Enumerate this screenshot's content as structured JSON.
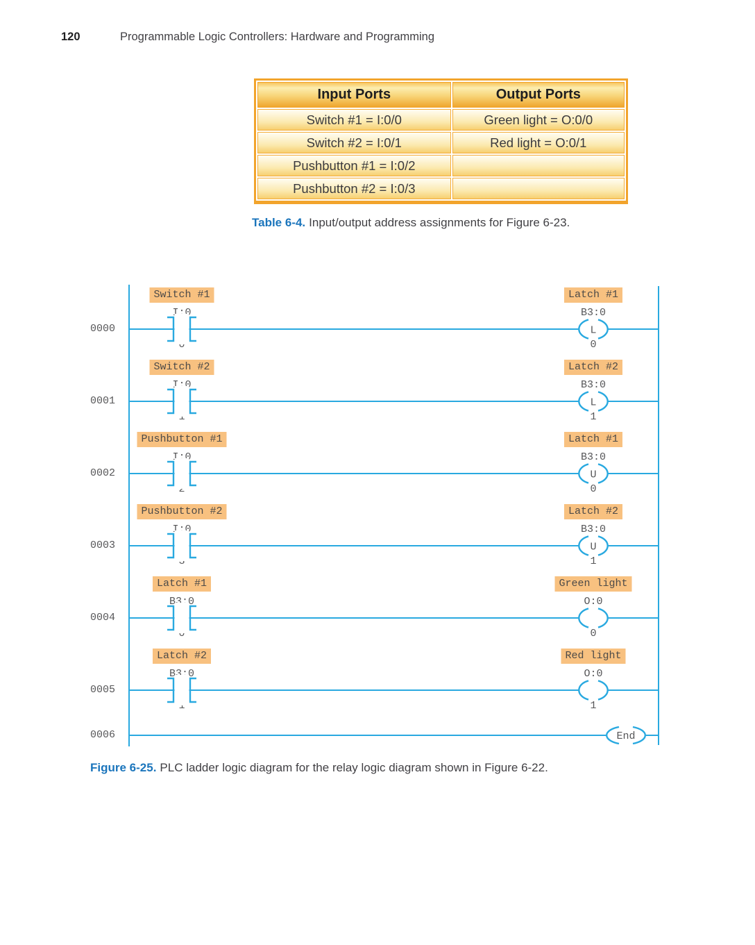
{
  "header": {
    "page_number": "120",
    "title": "Programmable Logic Controllers: Hardware and Programming"
  },
  "table": {
    "columns": [
      "Input Ports",
      "Output Ports"
    ],
    "rows": [
      [
        "Switch #1 = I:0/0",
        "Green light = O:0/0"
      ],
      [
        "Switch #2 = I:0/1",
        "Red light = O:0/1"
      ],
      [
        "Pushbutton #1 = I:0/2",
        ""
      ],
      [
        "Pushbutton #2 = I:0/3",
        ""
      ]
    ],
    "caption_label": "Table 6-4.",
    "caption_text": "Input/output address assignments for Figure 6-23."
  },
  "ladder": {
    "rungs": [
      {
        "number": "0000",
        "input": {
          "label": "Switch #1",
          "address": "I:0",
          "bit": "0"
        },
        "output": {
          "label": "Latch #1",
          "address": "B3:0",
          "bit": "0",
          "coil": "L"
        }
      },
      {
        "number": "0001",
        "input": {
          "label": "Switch #2",
          "address": "I:0",
          "bit": "1"
        },
        "output": {
          "label": "Latch #2",
          "address": "B3:0",
          "bit": "1",
          "coil": "L"
        }
      },
      {
        "number": "0002",
        "input": {
          "label": "Pushbutton #1",
          "address": "I:0",
          "bit": "2"
        },
        "output": {
          "label": "Latch #1",
          "address": "B3:0",
          "bit": "0",
          "coil": "U"
        }
      },
      {
        "number": "0003",
        "input": {
          "label": "Pushbutton #2",
          "address": "I:0",
          "bit": "3"
        },
        "output": {
          "label": "Latch #2",
          "address": "B3:0",
          "bit": "1",
          "coil": "U"
        }
      },
      {
        "number": "0004",
        "input": {
          "label": "Latch #1",
          "address": "B3:0",
          "bit": "0"
        },
        "output": {
          "label": "Green light",
          "address": "O:0",
          "bit": "0",
          "coil": ""
        }
      },
      {
        "number": "0005",
        "input": {
          "label": "Latch #2",
          "address": "B3:0",
          "bit": "1"
        },
        "output": {
          "label": "Red light",
          "address": "O:0",
          "bit": "1",
          "coil": ""
        }
      },
      {
        "number": "0006",
        "end": "End"
      }
    ]
  },
  "figure_caption": {
    "label": "Figure 6-25.",
    "text": "PLC ladder logic diagram for the relay logic diagram shown in Figure 6-22."
  },
  "colors": {
    "ladder_blue": "#29A9E0",
    "instruction_label_bg": "#F8C180",
    "table_border_orange": "#F2A42C",
    "caption_blue": "#1B75BC"
  }
}
